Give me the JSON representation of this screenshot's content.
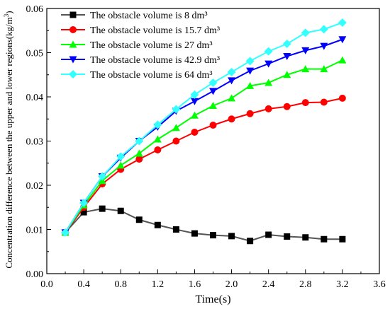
{
  "chart_data": {
    "type": "line",
    "title": "",
    "xlabel": "Time(s)",
    "ylabel": "Concentration difference between the upper and lower regions(kg/m",
    "ylabel_superscript": "3",
    "ylabel_close": ")",
    "xlim": [
      0.0,
      3.6
    ],
    "ylim": [
      0.0,
      0.06
    ],
    "xticks": [
      "0.0",
      "0.4",
      "0.8",
      "1.2",
      "1.6",
      "2.0",
      "2.4",
      "2.8",
      "3.2",
      "3.6"
    ],
    "yticks": [
      "0.00",
      "0.01",
      "0.02",
      "0.03",
      "0.04",
      "0.05",
      "0.06"
    ],
    "grid": false,
    "legend_position": "top-left",
    "x": [
      0.2,
      0.4,
      0.6,
      0.8,
      1.0,
      1.2,
      1.4,
      1.6,
      1.8,
      2.0,
      2.2,
      2.4,
      2.6,
      2.8,
      3.0,
      3.2
    ],
    "series": [
      {
        "name": "The obstacle volume is 8 dm³",
        "color": "#000000",
        "line_color": "#555555",
        "marker": "square",
        "values": [
          0.0093,
          0.0139,
          0.0147,
          0.0142,
          0.0122,
          0.011,
          0.01,
          0.0091,
          0.0087,
          0.0085,
          0.0074,
          0.0088,
          0.0084,
          0.0082,
          0.0078,
          0.0078
        ]
      },
      {
        "name": "The obstacle volume is 15.7 dm³",
        "color": "#ff0000",
        "line_color": "#ff0000",
        "marker": "circle",
        "values": [
          0.0093,
          0.015,
          0.0203,
          0.0236,
          0.0259,
          0.028,
          0.03,
          0.032,
          0.0336,
          0.035,
          0.0362,
          0.0373,
          0.0378,
          0.0387,
          0.0388,
          0.0397
        ]
      },
      {
        "name": "The obstacle volume is 27 dm³",
        "color": "#00ff00",
        "line_color": "#00ff00",
        "marker": "triangle-up",
        "values": [
          0.0093,
          0.0155,
          0.021,
          0.0245,
          0.0272,
          0.0304,
          0.033,
          0.0358,
          0.038,
          0.0397,
          0.0425,
          0.0432,
          0.045,
          0.0463,
          0.0463,
          0.0483
        ]
      },
      {
        "name": "The obstacle volume is 42.9 dm³",
        "color": "#0000ff",
        "line_color": "#0000ff",
        "marker": "triangle-down",
        "values": [
          0.0093,
          0.016,
          0.022,
          0.0262,
          0.03,
          0.0332,
          0.0368,
          0.039,
          0.0413,
          0.0437,
          0.0459,
          0.0475,
          0.0492,
          0.0505,
          0.0515,
          0.053
        ]
      },
      {
        "name": "The obstacle volume is 64 dm³",
        "color": "#33ffff",
        "line_color": "#33ffff",
        "marker": "diamond",
        "values": [
          0.0093,
          0.016,
          0.022,
          0.0265,
          0.03,
          0.0337,
          0.0372,
          0.0405,
          0.0432,
          0.0456,
          0.0481,
          0.0503,
          0.052,
          0.0545,
          0.0553,
          0.0568
        ]
      }
    ]
  }
}
